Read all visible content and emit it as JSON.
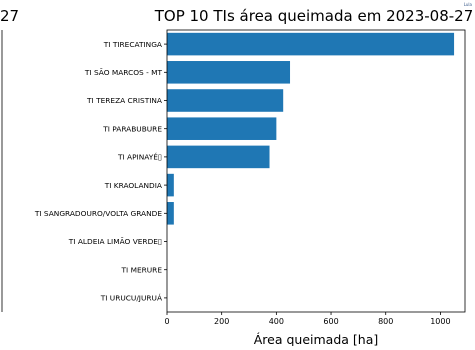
{
  "left_fragment": "27",
  "corner_mark": "Lula",
  "colors": {
    "bar": "#1f77b4",
    "axis": "#000000"
  },
  "chart_data": {
    "type": "bar",
    "orientation": "horizontal",
    "title": "TOP 10 TIs área queimada em 2023-08-27",
    "xlabel": "Área queimada [ha]",
    "ylabel": "",
    "categories": [
      "TI TIRECATINGA",
      "TI SÃO MARCOS - MT",
      "TI TEREZA CRISTINA",
      "TI PARABUBURE",
      "TI APINAYÉ▯",
      "TI KRAOLANDIA",
      "TI SANGRADOURO/VOLTA GRANDE",
      "TI ALDEIA LIMÃO VERDE▯",
      "TI MERURE",
      "TI URUCU/JURUÁ"
    ],
    "values": [
      1050,
      450,
      425,
      400,
      375,
      25,
      25,
      0,
      0,
      0
    ],
    "xlim": [
      0,
      1090
    ],
    "xticks": [
      0,
      200,
      400,
      600,
      800,
      1000
    ],
    "grid": false,
    "legend": "none"
  }
}
